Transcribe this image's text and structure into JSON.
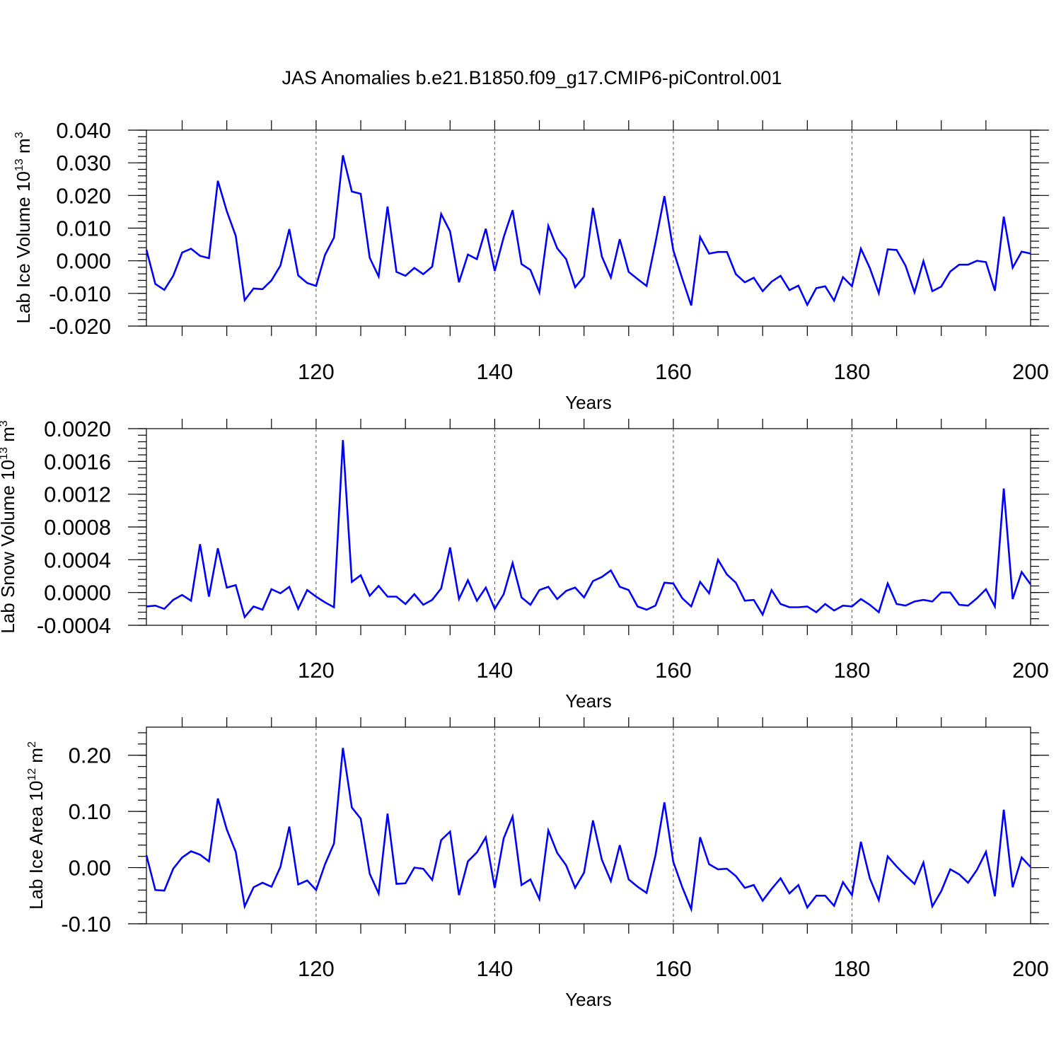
{
  "title": "JAS Anomalies b.e21.B1850.f09_g17.CMIP6-piControl.001",
  "chart_data": [
    {
      "type": "line",
      "ylabel": "Lab Ice Volume 10",
      "ylabel_sup": "13",
      "ylabel_unit": " m",
      "ylabel_unit_sup": "3",
      "xlabel": "Years",
      "xlim": [
        101,
        200
      ],
      "ylim": [
        -0.02,
        0.04
      ],
      "yticks": [
        "-0.020",
        "-0.010",
        "0.000",
        "0.010",
        "0.020",
        "0.030",
        "0.040"
      ],
      "xticks": [
        "120",
        "140",
        "160",
        "180",
        "200"
      ],
      "x_start": 101,
      "series": [
        {
          "color": "#0000ff",
          "values": [
            0.0034,
            -0.0071,
            -0.0089,
            -0.0046,
            0.0025,
            0.0037,
            0.0015,
            0.0008,
            0.0245,
            0.0152,
            0.0076,
            -0.0121,
            -0.0085,
            -0.0087,
            -0.006,
            -0.0015,
            0.0097,
            -0.0045,
            -0.0068,
            -0.0077,
            0.0018,
            0.0071,
            0.0323,
            0.0212,
            0.0205,
            0.0009,
            -0.0048,
            0.0166,
            -0.0034,
            -0.0046,
            -0.0022,
            -0.0041,
            -0.0018,
            0.0143,
            0.009,
            -0.0066,
            0.0019,
            0.0005,
            0.0098,
            -0.0031,
            0.0072,
            0.0155,
            -0.001,
            -0.0028,
            -0.0097,
            0.0107,
            0.0038,
            0.0005,
            -0.0081,
            -0.0048,
            0.0162,
            0.0013,
            -0.0051,
            0.0066,
            -0.0034,
            -0.0056,
            -0.0077,
            0.0056,
            0.0198,
            0.0032,
            -0.0055,
            -0.0137,
            0.0073,
            0.0022,
            0.0027,
            0.0027,
            -0.0041,
            -0.0066,
            -0.0052,
            -0.0093,
            -0.0064,
            -0.0046,
            -0.009,
            -0.0076,
            -0.0135,
            -0.0084,
            -0.0078,
            -0.0122,
            -0.005,
            -0.0078,
            0.0037,
            -0.0022,
            -0.0099,
            0.0035,
            0.0033,
            -0.0015,
            -0.0097,
            -0.0001,
            -0.0093,
            -0.0079,
            -0.0033,
            -0.0012,
            -0.0012,
            0.0,
            -0.0004,
            -0.0092,
            0.0135,
            -0.0021,
            0.0028,
            0.0022
          ]
        }
      ]
    },
    {
      "type": "line",
      "ylabel": "Lab Snow Volume 10",
      "ylabel_sup": "13",
      "ylabel_unit": " m",
      "ylabel_unit_sup": "3",
      "xlabel": "Years",
      "xlim": [
        101,
        200
      ],
      "ylim": [
        -0.0004,
        0.002
      ],
      "yticks": [
        "-0.0004",
        "0.0000",
        "0.0004",
        "0.0008",
        "0.0012",
        "0.0016",
        "0.0020"
      ],
      "xticks": [
        "120",
        "140",
        "160",
        "180",
        "200"
      ],
      "x_start": 101,
      "series": [
        {
          "color": "#0000ff",
          "values": [
            -0.00017,
            -0.00016,
            -0.0002,
            -9e-05,
            -3e-05,
            -0.0001,
            0.00059,
            -5e-05,
            0.00054,
            6e-05,
            9e-05,
            -0.0003,
            -0.00017,
            -0.00021,
            4e-05,
            -1e-05,
            7e-05,
            -0.0002,
            3e-05,
            -5e-05,
            -0.00012,
            -0.00018,
            0.00186,
            0.00013,
            0.00021,
            -4e-05,
            8e-05,
            -5e-05,
            -5e-05,
            -0.00014,
            -2e-05,
            -0.00015,
            -9e-05,
            5e-05,
            0.00055,
            -8e-05,
            0.00015,
            -0.0001,
            6e-05,
            -0.0002,
            -2e-05,
            0.00036,
            -6e-05,
            -0.00015,
            3e-05,
            7e-05,
            -8e-05,
            2e-05,
            6e-05,
            -6e-05,
            0.00014,
            0.00019,
            0.00027,
            7e-05,
            3e-05,
            -0.00017,
            -0.00021,
            -0.00016,
            0.00012,
            0.00011,
            -7e-05,
            -0.00017,
            0.00013,
            -1e-05,
            0.0004,
            0.00022,
            0.00012,
            -0.0001,
            -9e-05,
            -0.00027,
            3e-05,
            -0.00014,
            -0.00018,
            -0.00018,
            -0.00017,
            -0.00024,
            -0.00014,
            -0.00022,
            -0.00016,
            -0.00017,
            -8e-05,
            -0.00015,
            -0.00024,
            0.00011,
            -0.00014,
            -0.00016,
            -0.00011,
            -9e-05,
            -0.00011,
            0.0,
            0.0,
            -0.00015,
            -0.00016,
            -7e-05,
            4e-05,
            -0.00017,
            0.00127,
            -8e-05,
            0.00025,
            0.0001
          ]
        }
      ]
    },
    {
      "type": "line",
      "ylabel": "Lab Ice Area 10",
      "ylabel_sup": "12",
      "ylabel_unit": " m",
      "ylabel_unit_sup": "2",
      "xlabel": "Years",
      "xlim": [
        101,
        200
      ],
      "ylim": [
        -0.1,
        0.25
      ],
      "yticks": [
        "-0.10",
        "0.00",
        "0.10",
        "0.20"
      ],
      "xticks": [
        "120",
        "140",
        "160",
        "180",
        "200"
      ],
      "x_start": 101,
      "series": [
        {
          "color": "#0000ff",
          "values": [
            0.022,
            -0.04,
            -0.041,
            -0.002,
            0.018,
            0.029,
            0.023,
            0.011,
            0.123,
            0.068,
            0.028,
            -0.069,
            -0.035,
            -0.027,
            -0.034,
            0.001,
            0.073,
            -0.03,
            -0.023,
            -0.04,
            0.006,
            0.043,
            0.213,
            0.107,
            0.087,
            -0.011,
            -0.046,
            0.096,
            -0.029,
            -0.028,
            0.0,
            -0.002,
            -0.022,
            0.049,
            0.064,
            -0.049,
            0.011,
            0.027,
            0.054,
            -0.036,
            0.052,
            0.091,
            -0.031,
            -0.021,
            -0.056,
            0.066,
            0.026,
            0.004,
            -0.036,
            -0.009,
            0.084,
            0.014,
            -0.024,
            0.04,
            -0.021,
            -0.034,
            -0.045,
            0.022,
            0.116,
            0.01,
            -0.035,
            -0.074,
            0.054,
            0.006,
            -0.003,
            -0.002,
            -0.015,
            -0.036,
            -0.031,
            -0.059,
            -0.038,
            -0.019,
            -0.046,
            -0.031,
            -0.071,
            -0.05,
            -0.05,
            -0.068,
            -0.026,
            -0.049,
            0.046,
            -0.019,
            -0.058,
            0.02,
            0.002,
            -0.014,
            -0.029,
            0.009,
            -0.069,
            -0.042,
            -0.003,
            -0.012,
            -0.027,
            -0.004,
            0.028,
            -0.051,
            0.103,
            -0.035,
            0.018,
            0.001
          ]
        }
      ]
    }
  ]
}
